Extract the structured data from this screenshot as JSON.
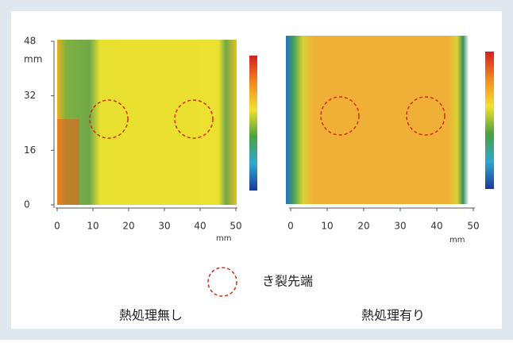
{
  "panels": [
    {
      "caption": "熱処理無し",
      "x_unit": "mm",
      "y_unit": "mm",
      "xlim": [
        0,
        50
      ],
      "xticks": [
        0,
        10,
        20,
        30,
        40,
        50
      ],
      "ylim": [
        0,
        48
      ],
      "yticks": [
        0,
        16,
        32,
        48
      ]
    },
    {
      "caption": "熱処理有り",
      "x_unit": "mm",
      "xlim": [
        0,
        50
      ],
      "xticks": [
        0,
        10,
        20,
        30,
        40,
        50
      ]
    }
  ],
  "legend": {
    "label": "き裂先端"
  }
}
